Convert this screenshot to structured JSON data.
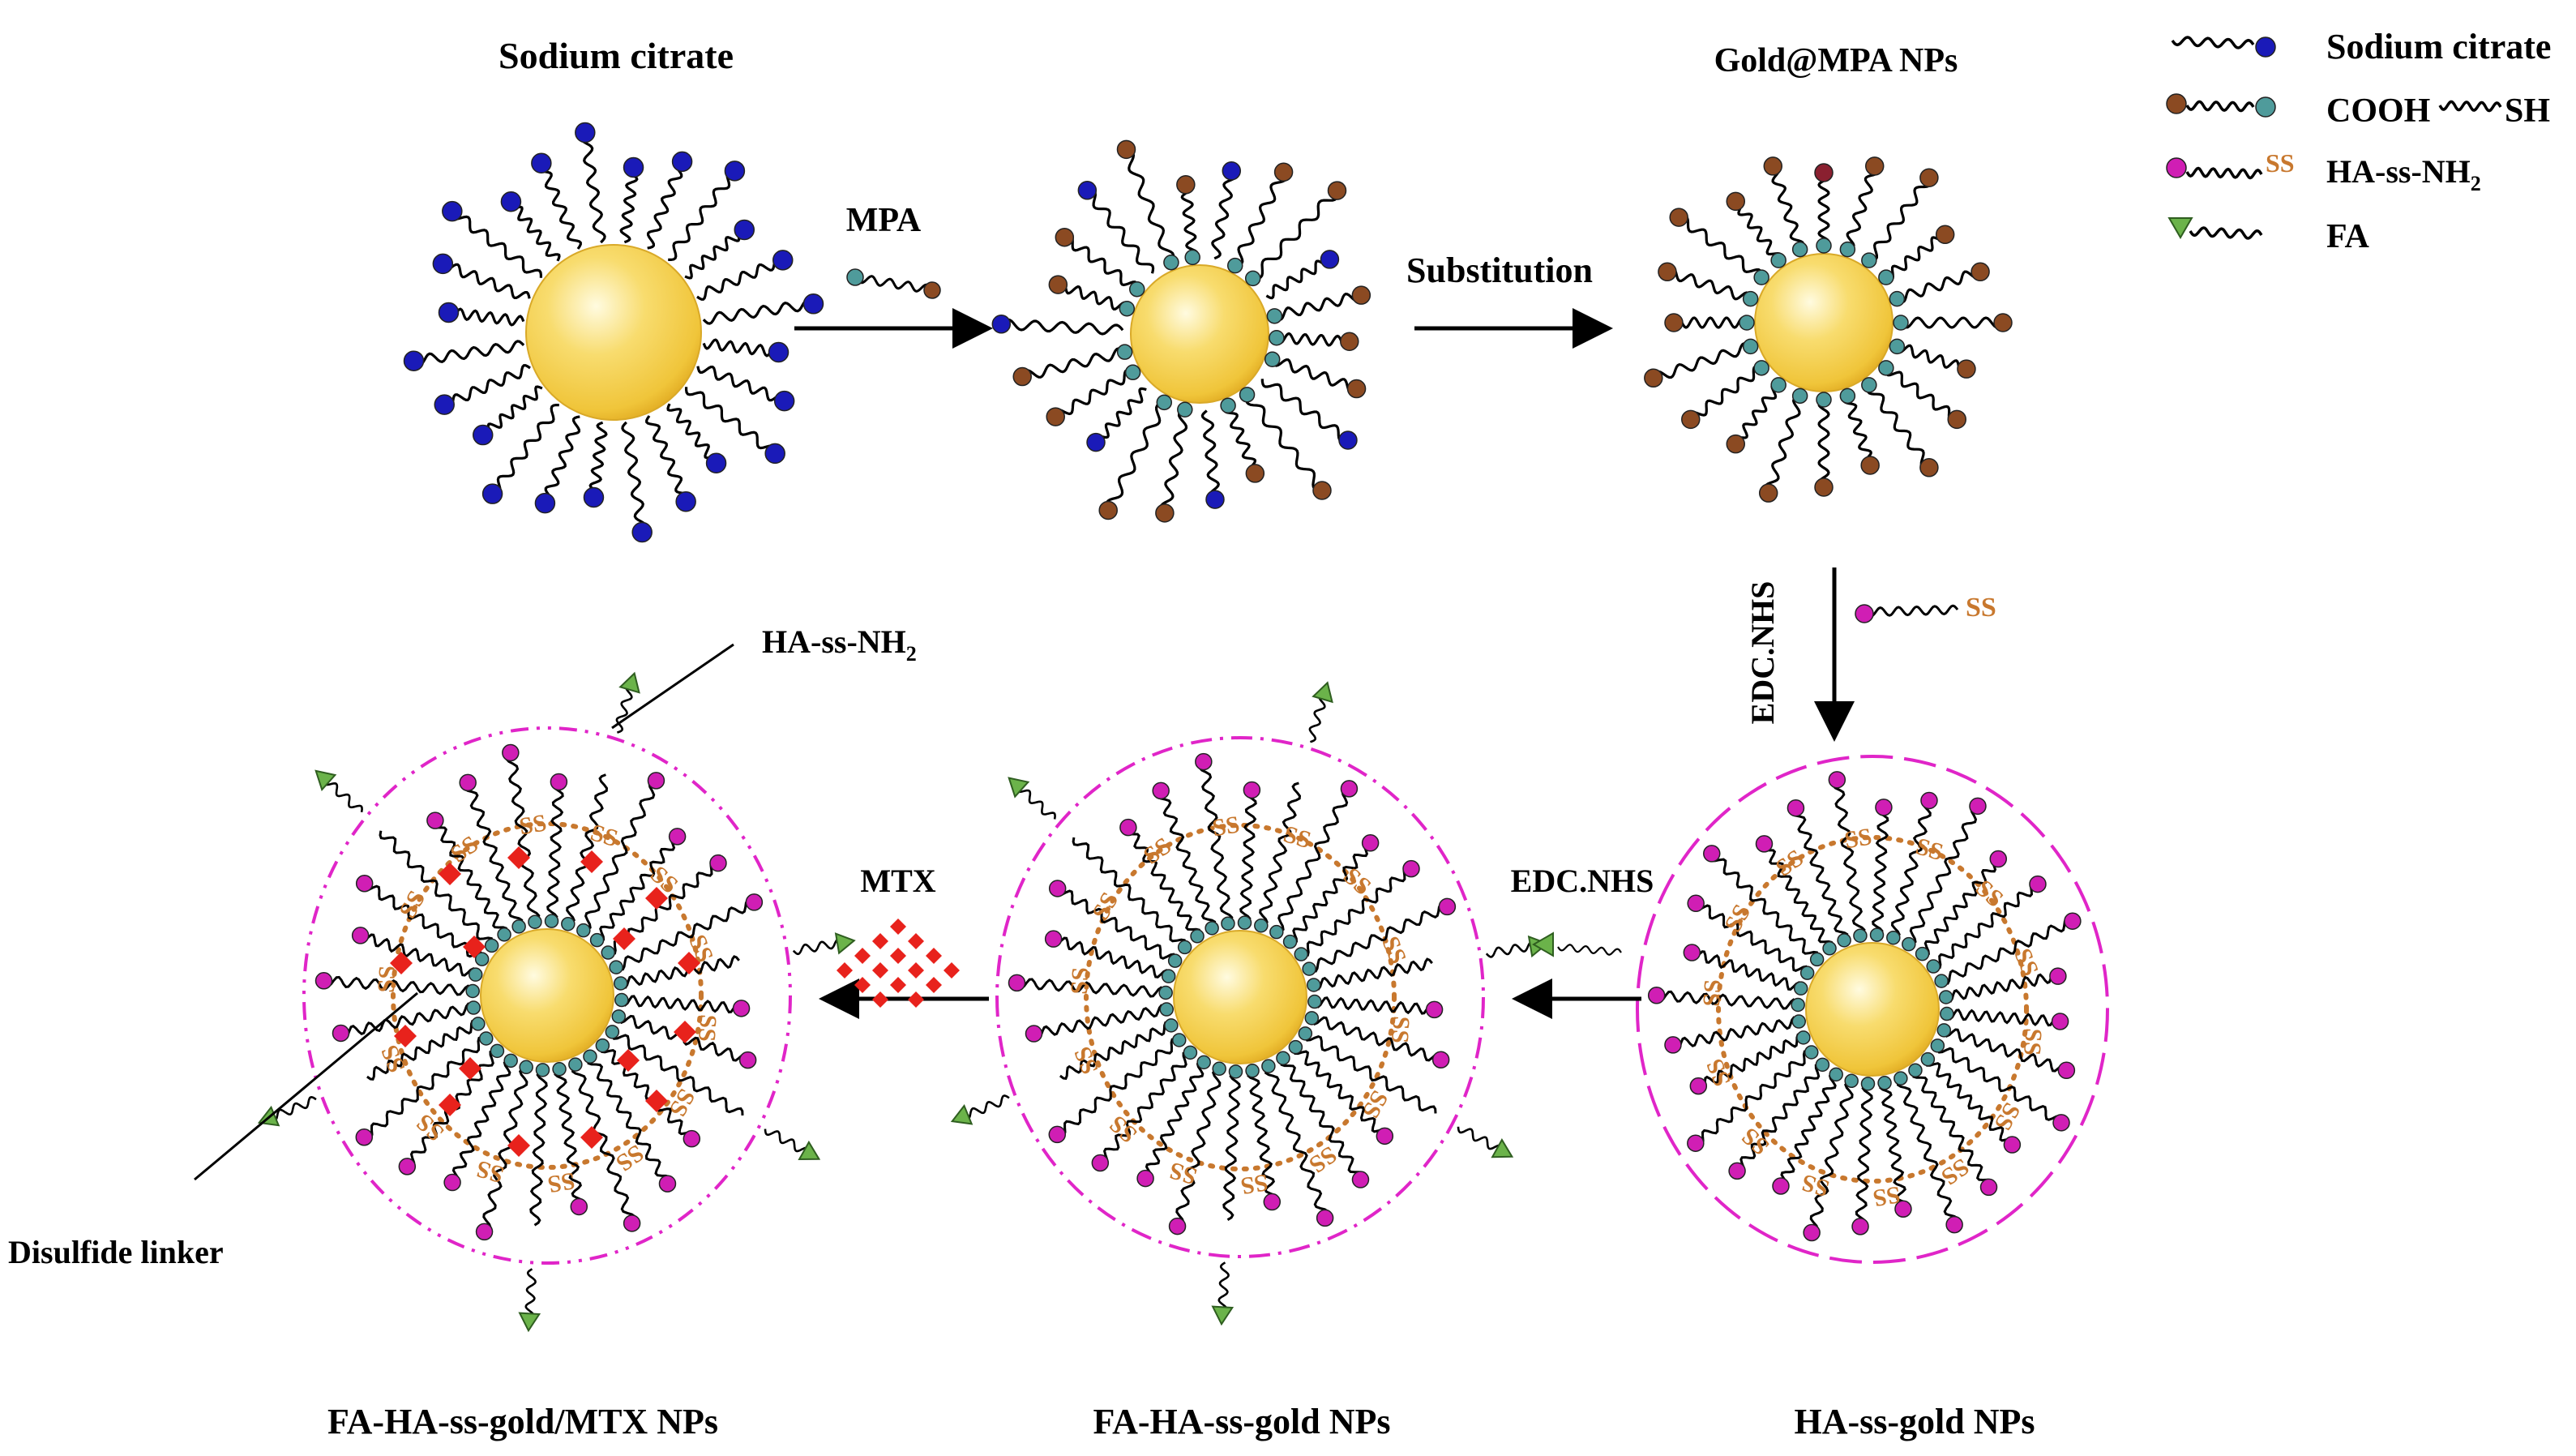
{
  "title_sodium_citrate": "Sodium citrate",
  "title_gold_mpa": "Gold@MPA NPs",
  "step_mpa": "MPA",
  "step_substitution": "Substitution",
  "step_edc_vertical": "EDC.NHS",
  "step_edc_horizontal": "EDC.NHS",
  "step_mtx": "MTX",
  "ss_mark": "SS",
  "label_ha_ss_nh2": "HA-ss-NH",
  "label_ha_ss_nh2_sub": "2",
  "label_disulfide": "Disulfide linker",
  "caption_final": "FA-HA-ss-gold/MTX NPs",
  "caption_fa_ha": "FA-HA-ss-gold NPs",
  "caption_ha": "HA-ss-gold NPs",
  "legend": {
    "sodium_citrate": "Sodium citrate",
    "cooh": "COOH",
    "sh": "SH",
    "ha_ss": "HA-ss-NH",
    "ha_ss_sub": "2",
    "ss": "SS",
    "fa": "FA"
  },
  "colors": {
    "citrate": "#1a1ab8",
    "cooh": "#8b4a22",
    "thiol": "#4f9b9b",
    "ha": "#d01eb4",
    "fa": "#6bb34a",
    "gold": "#f3c843",
    "ss": "#c8782e",
    "mtx": "#e8221c",
    "shell": "#e025c8"
  }
}
